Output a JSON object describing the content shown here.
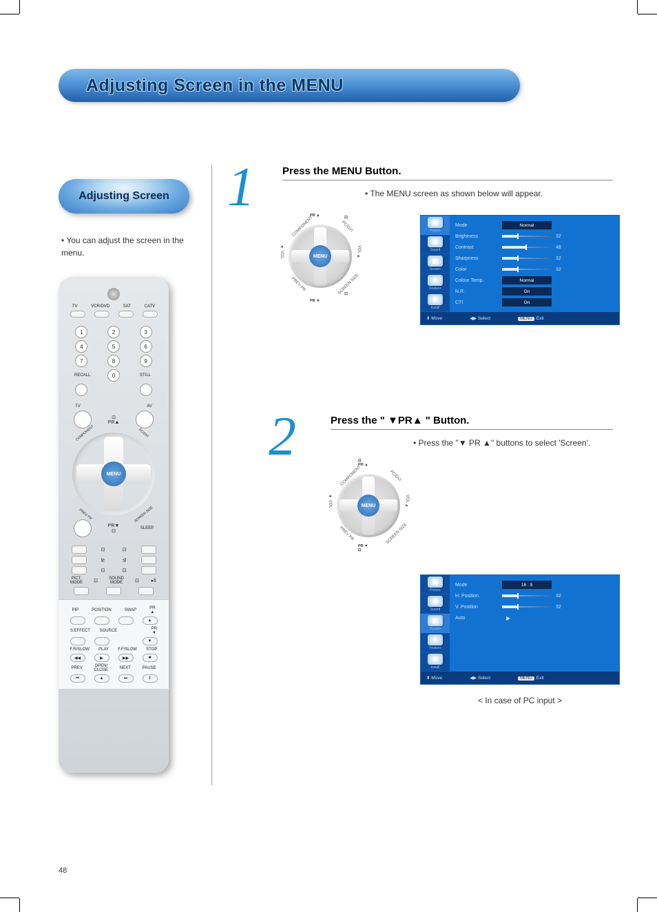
{
  "page_number": "48",
  "title": "Adjusting Screen in the MENU",
  "title_colors": {
    "grad_top": "#7eb8e6",
    "grad_mid": "#4a8fd4",
    "grad_bottom": "#2060a8",
    "text": "#0a3868"
  },
  "left": {
    "tag": "Adjusting Screen",
    "desc": "• You can adjust the screen in the menu."
  },
  "divider_color": "#8aa2b5",
  "steps": {
    "s1": {
      "num": "1",
      "num_color": "#1b8fd3",
      "heading": "Press the MENU Button.",
      "desc": "• The MENU screen as shown below will appear."
    },
    "s2": {
      "num": "2",
      "num_color": "#1b8fd3",
      "heading_prefix": "Press the \" ",
      "heading_mid": "PR",
      "heading_suffix": " \" Button.",
      "desc_prefix": "• Press the \"",
      "desc_mid": "PR",
      "desc_suffix": "\" buttons to select 'Screen'.",
      "caption": "< In case of PC input >"
    }
  },
  "dpad": {
    "center": "MENU",
    "top": "PR ▲",
    "bottom": "PR ▼",
    "top_icon": "⊡",
    "bottom_icon": "⊡",
    "c1": "COMPONENT",
    "c2": "PC/DVI",
    "c3": "PREV PR",
    "c4": "SCREEN SIZE",
    "left": "◄ VOL",
    "right": "VOL ►",
    "center_grad_top": "#6aa9e0",
    "center_grad_bottom": "#2c6ab3"
  },
  "osd1": {
    "bg": "#0d4ea1",
    "panel_bg": "#1272d2",
    "box_bg": "#0a2a55",
    "tabs": [
      {
        "label": "Picture",
        "glyph": "▣",
        "active": true
      },
      {
        "label": "Sound",
        "glyph": "◉",
        "active": false
      },
      {
        "label": "Screen",
        "glyph": "◧",
        "active": false
      },
      {
        "label": "Feature",
        "glyph": "✦",
        "active": false
      },
      {
        "label": "Install",
        "glyph": "✇",
        "active": false
      }
    ],
    "rows": [
      {
        "name": "Mode",
        "type": "box",
        "value": "Normal"
      },
      {
        "name": "Brightness",
        "type": "slider",
        "value": 32,
        "max": 100
      },
      {
        "name": "Contrast",
        "type": "slider",
        "value": 48,
        "max": 100
      },
      {
        "name": "Sharpness",
        "type": "slider",
        "value": 32,
        "max": 100
      },
      {
        "name": "Color",
        "type": "slider",
        "value": 32,
        "max": 100
      },
      {
        "name": "Colour Temp.",
        "type": "box",
        "value": "Normal"
      },
      {
        "name": "N.R.",
        "type": "box",
        "value": "On"
      },
      {
        "name": "CTI",
        "type": "box",
        "value": "On"
      }
    ],
    "footer": {
      "move": "Move",
      "select": "Select",
      "exit": "Exit",
      "menu_btn": "MENU"
    }
  },
  "osd2": {
    "bg": "#0d4ea1",
    "panel_bg": "#1272d2",
    "box_bg": "#0a2a55",
    "tabs": [
      {
        "label": "Picture",
        "glyph": "▣",
        "active": false
      },
      {
        "label": "Sound",
        "glyph": "◉",
        "active": false
      },
      {
        "label": "Screen",
        "glyph": "◧",
        "active": true
      },
      {
        "label": "Feature",
        "glyph": "✦",
        "active": false
      },
      {
        "label": "Install",
        "glyph": "✇",
        "active": false
      }
    ],
    "rows": [
      {
        "name": "Mode",
        "type": "box",
        "value": "16 : 9"
      },
      {
        "name": "H. Position.",
        "type": "slider",
        "value": 32,
        "max": 100
      },
      {
        "name": "V. Position",
        "type": "slider",
        "value": 32,
        "max": 100
      },
      {
        "name": "Auto",
        "type": "arrow",
        "value": "▶"
      }
    ],
    "footer": {
      "move": "Move",
      "select": "Select",
      "exit": "Exit",
      "menu_btn": "MENU"
    }
  },
  "remote": {
    "row1": [
      "TV",
      "VCR/DVD",
      "SAT",
      "CATV"
    ],
    "nums": [
      "1",
      "2",
      "3",
      "4",
      "5",
      "6",
      "7",
      "8",
      "9",
      "0"
    ],
    "recall": "RECALL",
    "still": "STILL",
    "tv": "TV",
    "av": "AV",
    "sleep": "SLEEP",
    "pict": "PICT.\nMODE",
    "sound": "SOUND\nMODE",
    "pip": "PIP",
    "position": "POSITION",
    "swap": "SWAP",
    "seffect": "S.EFFECT",
    "source": "SOURCE",
    "frslow1": "F.R/SLOW",
    "play": "PLAY",
    "ffslow": "F.F/SLOW",
    "stop": "STOP",
    "prev": "PREV",
    "open": "OPEN/\nCLOSE",
    "next": "NEXT",
    "pause": "PAUSE",
    "pr_up": "PR\n▲",
    "pr_down": "PR\n▼"
  }
}
